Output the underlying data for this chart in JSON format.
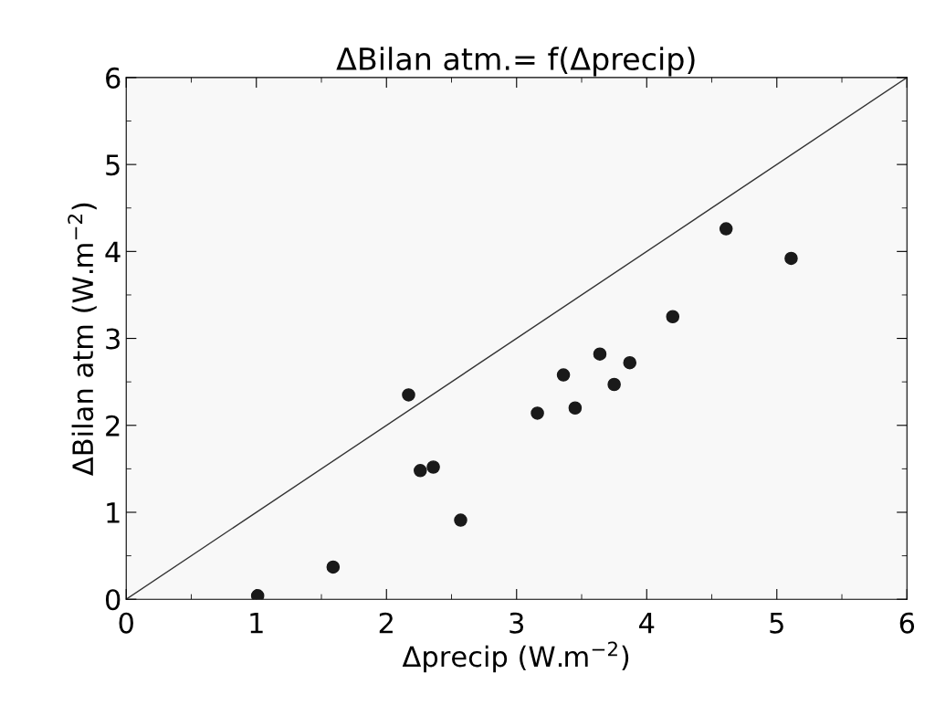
{
  "chart_data": {
    "type": "scatter",
    "title": "ΔBilan atm.= f(Δprecip)",
    "xlabel": "Δprecip (W.m$^{−2}$)",
    "ylabel": "ΔBilan atm (W.m$^{−2}$)",
    "xlim": [
      0,
      6
    ],
    "ylim": [
      0,
      6
    ],
    "xticks": [
      0,
      1,
      2,
      3,
      4,
      5,
      6
    ],
    "yticks": [
      0,
      1,
      2,
      3,
      4,
      5,
      6
    ],
    "grid": false,
    "legend": false,
    "series": [
      {
        "marker": "circle",
        "color": "#1a1a1a",
        "x": [
          1.01,
          1.59,
          2.17,
          2.26,
          2.36,
          2.57,
          3.16,
          3.36,
          3.45,
          3.64,
          3.75,
          3.87,
          4.2,
          4.61,
          5.11
        ],
        "values": [
          0.04,
          0.37,
          2.35,
          1.48,
          1.52,
          0.91,
          2.14,
          2.58,
          2.2,
          2.82,
          2.47,
          2.72,
          3.25,
          4.26,
          3.92
        ]
      },
      {
        "type": "line",
        "marker": "none",
        "color": "#333333",
        "x": [
          0,
          6
        ],
        "values": [
          0,
          6
        ]
      }
    ]
  }
}
